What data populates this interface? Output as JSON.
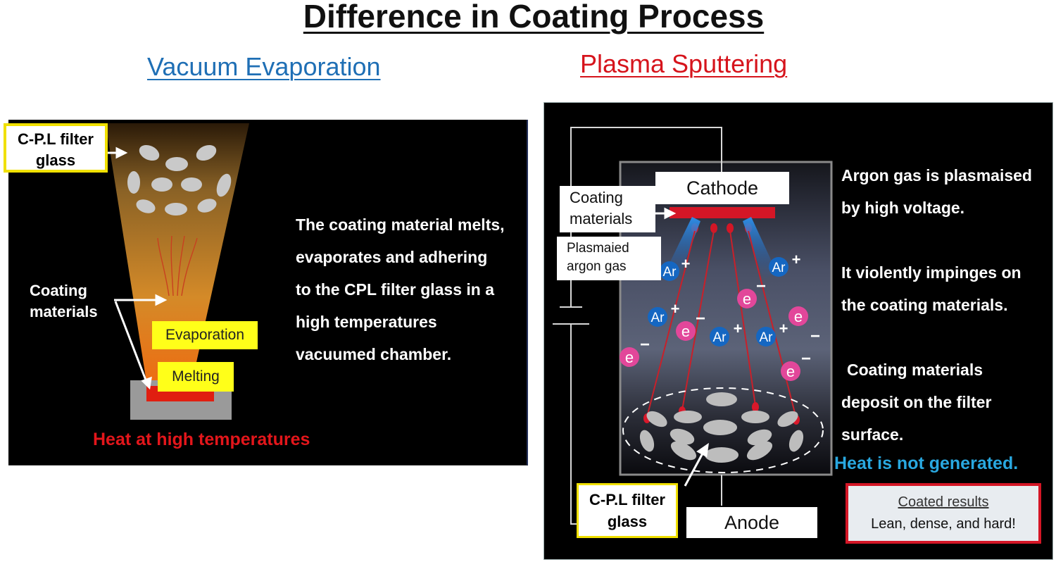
{
  "title": "Difference in Coating Process",
  "left": {
    "heading": "Vacuum Evaporation",
    "filter_label_line1": "C-P.L filter",
    "filter_label_line2": "glass",
    "materials_line1": "Coating",
    "materials_line2": "materials",
    "evaporation": "Evaporation",
    "melting": "Melting",
    "heat": "Heat at high temperatures",
    "description": [
      "The coating material melts,",
      "evaporates and adhering",
      "to the CPL filter glass in a",
      "high temperatures",
      "vacuumed chamber."
    ]
  },
  "right": {
    "heading": "Plasma Sputtering",
    "cathode": "Cathode",
    "anode": "Anode",
    "materials_line1": "Coating",
    "materials_line2": "materials",
    "gas_line1": "Plasmaied",
    "gas_line2": "argon gas",
    "filter_label_line1": "C-P.L filter",
    "filter_label_line2": "glass",
    "description": [
      "Argon gas is plasmaised",
      "by high voltage.",
      "It violently impinges on",
      "the coating materials.",
      "Coating materials",
      "deposit on the filter",
      "surface."
    ],
    "no_heat": "Heat is not generated.",
    "result_title": "Coated results",
    "result_text": "Lean, dense, and hard!",
    "ion_symbol": "Ar",
    "ion_charge": "+",
    "electron_symbol": "e",
    "electron_charge": "−"
  },
  "colors": {
    "vacuum_heading": "#1f6fb5",
    "plasma_heading": "#d6141c",
    "heat_text": "#e3161b",
    "no_heat_text": "#29a8e0",
    "label_border": "#f0e000"
  }
}
